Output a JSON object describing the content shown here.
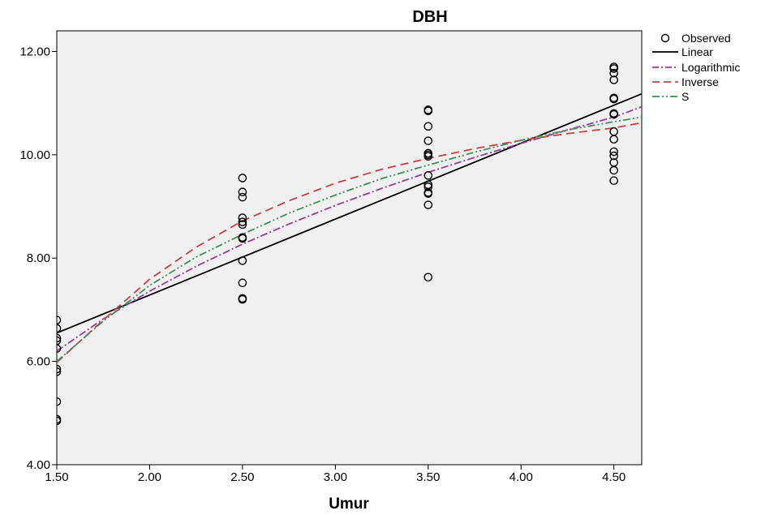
{
  "chart_data": {
    "type": "scatter",
    "title": "DBH",
    "xlabel": "Umur",
    "ylabel": "",
    "xlim": [
      1.5,
      4.65
    ],
    "ylim": [
      4.0,
      12.4
    ],
    "xticks": [
      1.5,
      2.0,
      2.5,
      3.0,
      3.5,
      4.0,
      4.5
    ],
    "xtick_labels": [
      "1.50",
      "2.00",
      "2.50",
      "3.00",
      "3.50",
      "4.00",
      "4.50"
    ],
    "yticks": [
      4.0,
      6.0,
      8.0,
      10.0,
      12.0
    ],
    "ytick_labels": [
      "4.00",
      "6.00",
      "8.00",
      "10.00",
      "12.00"
    ],
    "grid": false,
    "legend_position": "right",
    "plot_background": "#f0f0f0",
    "observed": {
      "name": "Observed",
      "x": [
        1.5,
        1.5,
        1.5,
        1.5,
        1.5,
        1.5,
        1.5,
        1.5,
        1.5,
        1.5,
        2.5,
        2.5,
        2.5,
        2.5,
        2.5,
        2.5,
        2.5,
        2.5,
        2.5,
        2.5,
        2.5,
        2.5,
        3.5,
        3.5,
        3.5,
        3.5,
        3.5,
        3.5,
        3.5,
        3.5,
        3.5,
        3.5,
        3.5,
        3.5,
        3.5,
        3.5,
        4.5,
        4.5,
        4.5,
        4.5,
        4.5,
        4.5,
        4.5,
        4.5,
        4.5,
        4.5,
        4.5,
        4.5,
        4.5,
        4.5,
        4.5
      ],
      "y": [
        6.8,
        6.64,
        6.45,
        6.4,
        6.25,
        5.85,
        5.8,
        5.22,
        4.88,
        4.85,
        9.55,
        9.28,
        9.18,
        8.78,
        8.7,
        8.65,
        8.4,
        8.38,
        7.95,
        7.52,
        7.22,
        7.2,
        10.87,
        10.85,
        10.55,
        10.27,
        10.03,
        10.0,
        9.97,
        9.6,
        9.42,
        9.38,
        9.27,
        9.25,
        9.03,
        7.63,
        11.7,
        11.67,
        11.58,
        11.45,
        11.1,
        11.08,
        10.8,
        10.45,
        10.3,
        10.06,
        9.98,
        9.85,
        9.7,
        9.5,
        10.78
      ]
    },
    "series": [
      {
        "name": "Linear",
        "type": "line",
        "color": "#000000",
        "dash": "solid",
        "x": [
          1.5,
          4.65
        ],
        "y": [
          6.55,
          11.18
        ]
      },
      {
        "name": "Logarithmic",
        "type": "line",
        "color": "#9c3a9c",
        "dash": "dashdot",
        "x": [
          1.5,
          1.75,
          2.0,
          2.25,
          2.5,
          2.75,
          3.0,
          3.25,
          3.5,
          3.75,
          4.0,
          4.25,
          4.5,
          4.65
        ],
        "y": [
          6.2,
          6.82,
          7.36,
          7.84,
          8.27,
          8.66,
          9.02,
          9.35,
          9.66,
          9.95,
          10.22,
          10.48,
          10.73,
          10.93
        ]
      },
      {
        "name": "Inverse",
        "type": "line",
        "color": "#d23c3c",
        "dash": "dash",
        "x": [
          1.5,
          1.75,
          2.0,
          2.25,
          2.5,
          2.75,
          3.0,
          3.25,
          3.5,
          3.75,
          4.0,
          4.25,
          4.5,
          4.65
        ],
        "y": [
          5.98,
          6.8,
          7.59,
          8.21,
          8.72,
          9.11,
          9.45,
          9.72,
          9.93,
          10.12,
          10.28,
          10.41,
          10.52,
          10.62
        ]
      },
      {
        "name": "S",
        "type": "line",
        "color": "#3d8f5a",
        "dash": "dashdotdot",
        "x": [
          1.5,
          1.75,
          2.0,
          2.25,
          2.5,
          2.75,
          3.0,
          3.25,
          3.5,
          3.75,
          4.0,
          4.25,
          4.5,
          4.65
        ],
        "y": [
          6.0,
          6.78,
          7.47,
          8.02,
          8.46,
          8.87,
          9.22,
          9.54,
          9.8,
          10.05,
          10.28,
          10.48,
          10.64,
          10.73
        ]
      }
    ]
  }
}
